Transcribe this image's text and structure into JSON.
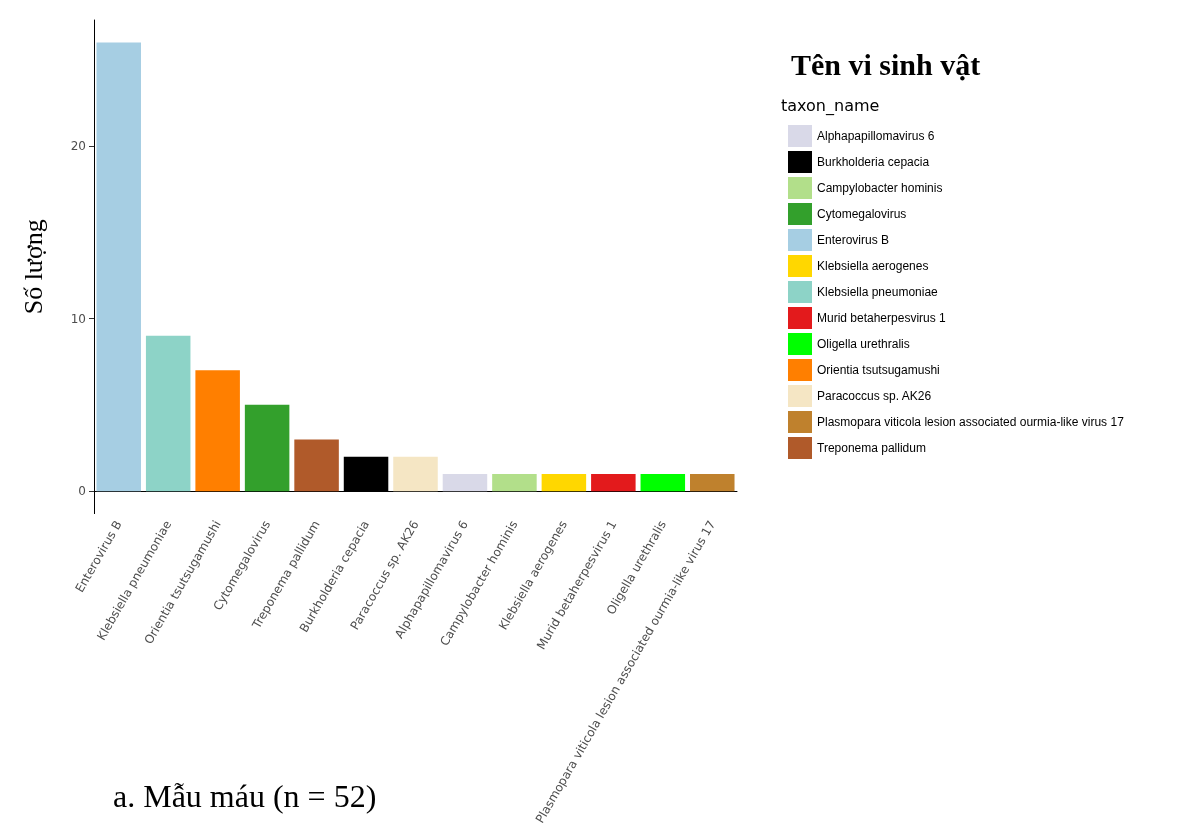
{
  "chart_data": {
    "type": "bar",
    "title": "Tên vi sinh vật",
    "ylabel": "Số lượng",
    "legend_title": "taxon_name",
    "annotations": [
      "a. Mẫu máu (n = 52)"
    ],
    "categories": [
      "Enterovirus B",
      "Klebsiella pneumoniae",
      "Orientia tsutsugamushi",
      "Cytomegalovirus",
      "Treponema pallidum",
      "Burkholderia cepacia",
      "Paracoccus sp. AK26",
      "Alphapapillomavirus 6",
      "Campylobacter hominis",
      "Klebsiella aerogenes",
      "Murid betaherpesvirus 1",
      "Oligella urethralis",
      "Plasmopara viticola lesion associated ourmia-like virus 17"
    ],
    "stacked": true,
    "series": [
      {
        "name": "Alphapapillomavirus 6",
        "color": "#d9d9e8",
        "values": [
          null,
          null,
          null,
          null,
          null,
          null,
          null,
          1,
          null,
          null,
          null,
          null,
          null
        ]
      },
      {
        "name": "Burkholderia cepacia",
        "color": "#000000",
        "values": [
          null,
          null,
          null,
          null,
          null,
          2,
          null,
          null,
          null,
          null,
          null,
          null,
          null
        ]
      },
      {
        "name": "Campylobacter hominis",
        "color": "#b2df8a",
        "values": [
          null,
          null,
          null,
          null,
          null,
          null,
          null,
          null,
          1,
          null,
          null,
          null,
          null
        ]
      },
      {
        "name": "Cytomegalovirus",
        "color": "#33a02c",
        "values": [
          null,
          null,
          null,
          5,
          null,
          null,
          null,
          null,
          null,
          null,
          null,
          null,
          null
        ]
      },
      {
        "name": "Enterovirus B",
        "color": "#a6cee3",
        "values": [
          26,
          null,
          null,
          null,
          null,
          null,
          null,
          null,
          null,
          null,
          null,
          null,
          null
        ]
      },
      {
        "name": "Klebsiella aerogenes",
        "color": "#ffd700",
        "values": [
          null,
          null,
          null,
          null,
          null,
          null,
          null,
          null,
          null,
          1,
          null,
          null,
          null
        ]
      },
      {
        "name": "Klebsiella pneumoniae",
        "color": "#8dd3c7",
        "values": [
          null,
          9,
          null,
          null,
          null,
          null,
          null,
          null,
          null,
          null,
          null,
          null,
          null
        ]
      },
      {
        "name": "Murid betaherpesvirus 1",
        "color": "#e31a1c",
        "values": [
          null,
          null,
          null,
          null,
          null,
          null,
          null,
          null,
          null,
          null,
          1,
          null,
          null
        ]
      },
      {
        "name": "Oligella urethralis",
        "color": "#00ff00",
        "values": [
          null,
          null,
          null,
          null,
          null,
          null,
          null,
          null,
          null,
          null,
          null,
          1,
          null
        ]
      },
      {
        "name": "Orientia tsutsugamushi",
        "color": "#ff7f00",
        "values": [
          null,
          null,
          7,
          null,
          null,
          null,
          null,
          null,
          null,
          null,
          null,
          null,
          null
        ]
      },
      {
        "name": "Paracoccus sp. AK26",
        "color": "#f5e6c4",
        "values": [
          null,
          null,
          null,
          null,
          null,
          null,
          2,
          null,
          null,
          null,
          null,
          null,
          null
        ]
      },
      {
        "name": "Plasmopara viticola lesion associated ourmia-like virus 17",
        "color": "#bf812d",
        "values": [
          null,
          null,
          null,
          null,
          null,
          null,
          null,
          null,
          null,
          null,
          null,
          null,
          1
        ]
      },
      {
        "name": "Treponema pallidum",
        "color": "#b05a2a",
        "values": [
          null,
          null,
          null,
          null,
          3,
          null,
          null,
          null,
          null,
          null,
          null,
          null,
          null
        ]
      }
    ],
    "ylim": [
      -1.3,
      27.3
    ],
    "yticks": [
      0,
      10,
      20
    ],
    "grid": false,
    "legend": "right"
  }
}
